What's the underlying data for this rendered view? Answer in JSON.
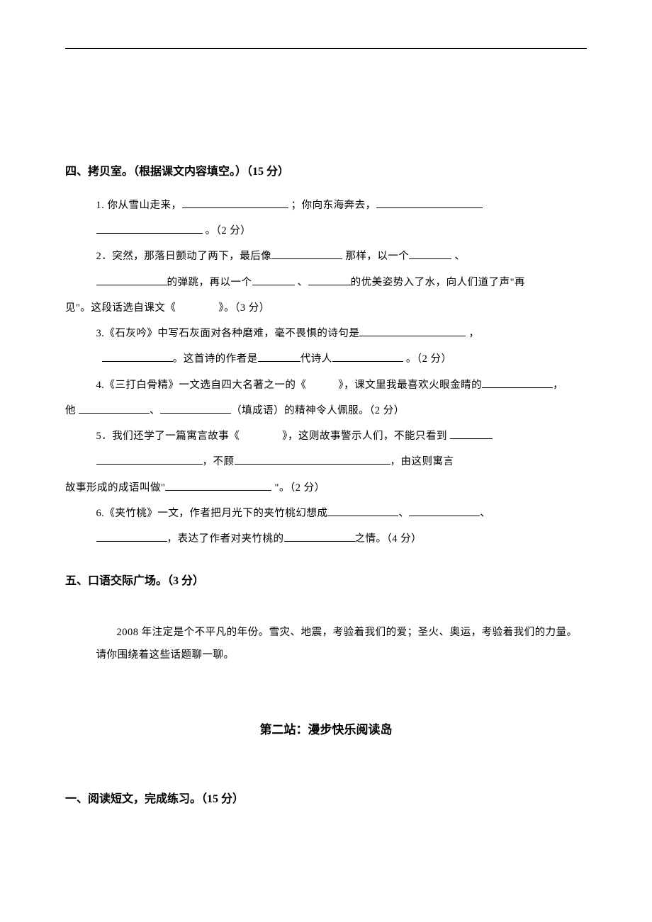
{
  "colors": {
    "text": "#000000",
    "background": "#ffffff",
    "line": "#000000"
  },
  "typography": {
    "heading_fontsize": 16,
    "body_fontsize": 14.5,
    "center_heading_fontsize": 17,
    "font_family": "SimSun"
  },
  "section4": {
    "heading": "四、拷贝室。（根据课文内容填空。）（15 分）",
    "q1a": "1. 你从雪山走来，",
    "q1b": " ；你向东海奔去，",
    "q1c": " 。（2 分）",
    "q2a": "2．突然，那落日颤动了两下，最后像",
    "q2b": " 那样，以一个",
    "q2c": " 、",
    "q2d": "的弹跳，再以一个",
    "q2e": " 、",
    "q2f": "的优美姿势入了水，向人们道了声\"再",
    "q2g": "见\"。这段话选自课文《　　　　》。（3 分）",
    "q3a": "3.《石灰吟》中写石灰面对各种磨难，毫不畏惧的诗句是",
    "q3b": " ，",
    "q3c": "。这首诗的作者是",
    "q3d": "代诗人",
    "q3e": " 。（2 分）",
    "q4a": "4.《三打白骨精》一文选自四大名著之一的《　　　》，课文里我最喜欢火眼金睛的",
    "q4b": "，",
    "q4c": "他 ",
    "q4d": "、",
    "q4e": "（填成语）的精神令人佩服。（2 分）",
    "q5a": "5．我们还学了一篇寓言故事《　　　　》，这则故事警示人们，不能只看到 ",
    "q5b": "，不顾",
    "q5c": "，由这则寓言",
    "q5d": "故事形成的成语叫做\"",
    "q5e": " \"。（2 分）",
    "q6a": "6.《夹竹桃》一文，作者把月光下的夹竹桃幻想成",
    "q6b": "、",
    "q6c": "、",
    "q6d": "，表达了作者对夹竹桃的",
    "q6e": "之情。（4 分）"
  },
  "section5": {
    "heading": "五、口语交际广场。（3 分）",
    "paragraph": "2008 年注定是个不平凡的年份。雪灾、地震，考验着我们的爱；圣火、奥运，考验着我们的力量。请你围绕着这些话题聊一聊。"
  },
  "station2": {
    "heading": "第二站：漫步快乐阅读岛"
  },
  "reading1": {
    "heading": "一、阅读短文，完成练习。（15 分）"
  }
}
